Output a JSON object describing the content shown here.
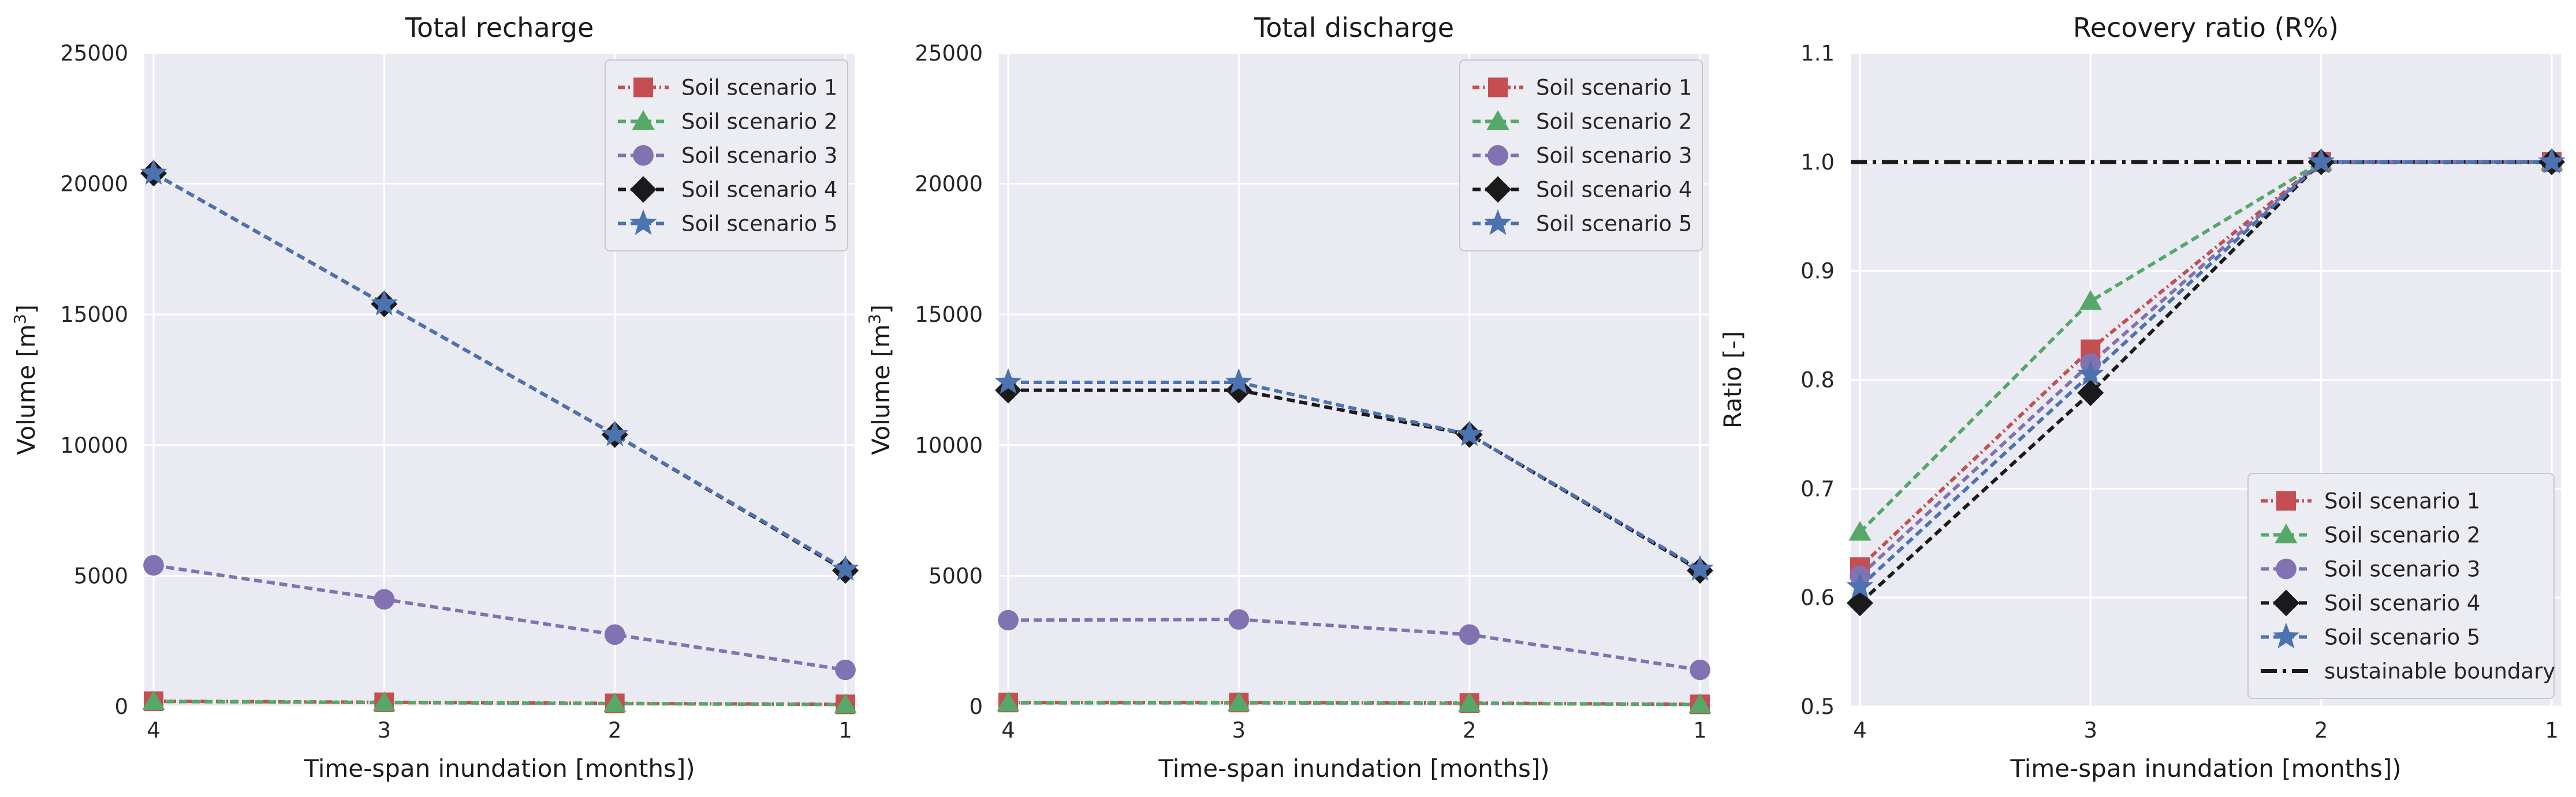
{
  "colors": {
    "panel_bg": "#eaeaf2",
    "grid": "#ffffff",
    "legend_bg": "#ececf3",
    "legend_border": "#c8c8c8"
  },
  "chart_data": [
    {
      "type": "line",
      "title": "Total recharge",
      "xlabel": "Time-span inundation [months])",
      "ylabel": "Volume [m³]",
      "ylabel_main": "Volume [m",
      "ylabel_sup": "3",
      "ylabel_end": "]",
      "x": [
        4,
        3,
        2,
        1
      ],
      "x_ticks": [
        "4",
        "3",
        "2",
        "1"
      ],
      "xlim": [
        4.04,
        0.96
      ],
      "ylim": [
        0,
        25000
      ],
      "y_ticks": [
        0,
        5000,
        10000,
        15000,
        20000,
        25000
      ],
      "y_tick_labels": [
        "0",
        "5000",
        "10000",
        "15000",
        "20000",
        "25000"
      ],
      "grid": true,
      "legend_position": "top-right",
      "series": [
        {
          "name": "Soil scenario 1",
          "values": [
            200,
            160,
            120,
            80
          ],
          "color": "#c44e52",
          "marker": "square",
          "dash": "12,6,3,6"
        },
        {
          "name": "Soil scenario 2",
          "values": [
            190,
            150,
            110,
            70
          ],
          "color": "#55a868",
          "marker": "triangle",
          "dash": "14,8"
        },
        {
          "name": "Soil scenario 3",
          "values": [
            5400,
            4100,
            2750,
            1400
          ],
          "color": "#8172b2",
          "marker": "circle",
          "dash": "14,8"
        },
        {
          "name": "Soil scenario 4",
          "values": [
            20400,
            15400,
            10400,
            5200
          ],
          "color": "#1a1a1a",
          "marker": "diamond",
          "dash": "14,8"
        },
        {
          "name": "Soil scenario 5",
          "values": [
            20400,
            15400,
            10400,
            5250
          ],
          "color": "#4c72b0",
          "marker": "star",
          "dash": "14,8"
        }
      ]
    },
    {
      "type": "line",
      "title": "Total discharge",
      "xlabel": "Time-span inundation [months])",
      "ylabel": "Volume [m³]",
      "ylabel_main": "Volume [m",
      "ylabel_sup": "3",
      "ylabel_end": "]",
      "x": [
        4,
        3,
        2,
        1
      ],
      "x_ticks": [
        "4",
        "3",
        "2",
        "1"
      ],
      "xlim": [
        4.04,
        0.96
      ],
      "ylim": [
        0,
        25000
      ],
      "y_ticks": [
        0,
        5000,
        10000,
        15000,
        20000,
        25000
      ],
      "y_tick_labels": [
        "0",
        "5000",
        "10000",
        "15000",
        "20000",
        "25000"
      ],
      "grid": true,
      "legend_position": "top-right",
      "series": [
        {
          "name": "Soil scenario 1",
          "values": [
            150,
            150,
            130,
            80
          ],
          "color": "#c44e52",
          "marker": "square",
          "dash": "12,6,3,6"
        },
        {
          "name": "Soil scenario 2",
          "values": [
            140,
            140,
            120,
            70
          ],
          "color": "#55a868",
          "marker": "triangle",
          "dash": "14,8"
        },
        {
          "name": "Soil scenario 3",
          "values": [
            3300,
            3330,
            2750,
            1400
          ],
          "color": "#8172b2",
          "marker": "circle",
          "dash": "14,8"
        },
        {
          "name": "Soil scenario 4",
          "values": [
            12100,
            12100,
            10400,
            5200
          ],
          "color": "#1a1a1a",
          "marker": "diamond",
          "dash": "14,8"
        },
        {
          "name": "Soil scenario 5",
          "values": [
            12400,
            12400,
            10400,
            5250
          ],
          "color": "#4c72b0",
          "marker": "star",
          "dash": "14,8"
        }
      ]
    },
    {
      "type": "line",
      "title": "Recovery ratio (R%)",
      "xlabel": "Time-span inundation [months])",
      "ylabel": "Ratio [-]",
      "ylabel_main": "Ratio [-]",
      "ylabel_sup": "",
      "ylabel_end": "",
      "x": [
        4,
        3,
        2,
        1
      ],
      "x_ticks": [
        "4",
        "3",
        "2",
        "1"
      ],
      "xlim": [
        4.04,
        0.96
      ],
      "ylim": [
        0.5,
        1.1
      ],
      "y_ticks": [
        0.5,
        0.6,
        0.7,
        0.8,
        0.9,
        1.0,
        1.1
      ],
      "y_tick_labels": [
        "0.5",
        "0.6",
        "0.7",
        "0.8",
        "0.9",
        "1.0",
        "1.1"
      ],
      "grid": true,
      "legend_position": "bottom-right",
      "series": [
        {
          "name": "Soil scenario 1",
          "values": [
            0.628,
            0.828,
            1.0,
            1.0
          ],
          "color": "#c44e52",
          "marker": "square",
          "dash": "12,6,3,6"
        },
        {
          "name": "Soil scenario 2",
          "values": [
            0.66,
            0.872,
            1.0,
            1.0
          ],
          "color": "#55a868",
          "marker": "triangle",
          "dash": "14,8"
        },
        {
          "name": "Soil scenario 3",
          "values": [
            0.62,
            0.815,
            1.0,
            1.0
          ],
          "color": "#8172b2",
          "marker": "circle",
          "dash": "14,8"
        },
        {
          "name": "Soil scenario 4",
          "values": [
            0.595,
            0.788,
            1.0,
            1.0
          ],
          "color": "#1a1a1a",
          "marker": "diamond",
          "dash": "14,8"
        },
        {
          "name": "Soil scenario 5",
          "values": [
            0.61,
            0.805,
            1.0,
            1.0
          ],
          "color": "#4c72b0",
          "marker": "star",
          "dash": "14,8"
        }
      ],
      "reference_line": {
        "name": "sustainable boundary",
        "value": 1.0,
        "color": "#1a1a1a",
        "dash": "28,10,6,10"
      }
    }
  ]
}
